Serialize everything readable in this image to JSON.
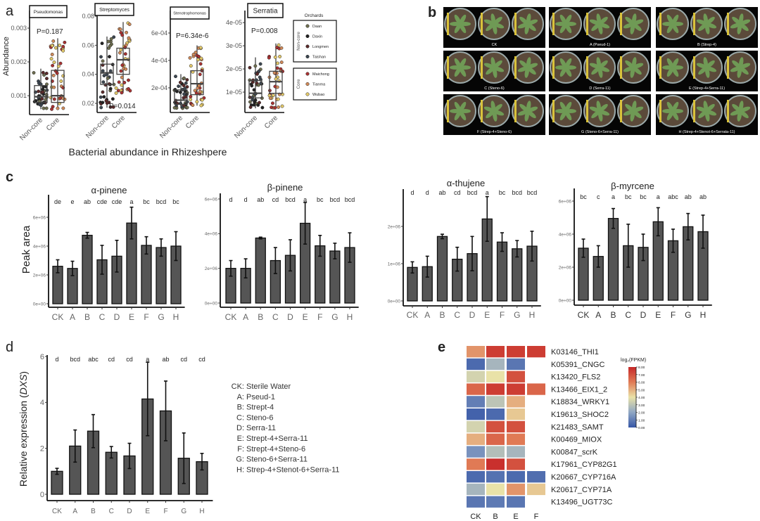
{
  "panel_labels": {
    "a": "a",
    "b": "b",
    "c": "c",
    "d": "d",
    "e": "e"
  },
  "panel_a": {
    "ylabel": "Abundance",
    "xlabel": "Bacterial abundance in Rhizeshpere",
    "legend": {
      "title": "Orchards",
      "groups": [
        {
          "name": "Non-core",
          "items": [
            {
              "name": "Daan",
              "color": "#6e6e50"
            },
            {
              "name": "Daxin",
              "color": "#222222"
            },
            {
              "name": "Longmen",
              "color": "#5a2a2a"
            },
            {
              "name": "Taishan",
              "color": "#3c4650"
            }
          ]
        },
        {
          "name": "Core",
          "items": [
            {
              "name": "Maichong",
              "color": "#a83232"
            },
            {
              "name": "Tianma",
              "color": "#d08a5a"
            },
            {
              "name": "Wubao",
              "color": "#e2c86a"
            }
          ]
        }
      ]
    }
  },
  "photos": {
    "labels": [
      "CK",
      "A (Pseud-1)",
      "B (Strep-4)",
      "C (Steno-6)",
      "D (Serra-11)",
      "E (Strep-4+Serra-11)",
      "F (Strep-4+Steno-6)",
      "G (Steno-6+Serra-11)",
      "H (Strep-4+Stenot-6+Serrata-11)"
    ]
  },
  "panel_c": {
    "ylabel": "Peak area"
  },
  "panel_d": {
    "legend": [
      {
        "key": "CK:",
        "value": "Sterile Water"
      },
      {
        "key": "A:",
        "value": "Pseud-1"
      },
      {
        "key": "B:",
        "value": "Strept-4"
      },
      {
        "key": "C:",
        "value": "Steno-6"
      },
      {
        "key": "D:",
        "value": "Serra-11"
      },
      {
        "key": "E:",
        "value": "Strept-4+Serra-11"
      },
      {
        "key": "F:",
        "value": "Strept-4+Steno-6"
      },
      {
        "key": "G:",
        "value": "Steno-6+Serra-11"
      },
      {
        "key": "H:",
        "value": "Strep-4+Stenot-6+Serra-11"
      }
    ]
  },
  "chart_data": [
    {
      "type": "box",
      "title": "Pseudomonas",
      "categories": [
        "Non-core",
        "Core"
      ],
      "p_label": "P=0.187",
      "ylim": [
        0.00044,
        0.00352
      ],
      "yticks": [
        0.001,
        0.002,
        0.003
      ],
      "ytick_labels": [
        "0.001",
        "0.002",
        "0.003"
      ],
      "stats": [
        {
          "whisker_low": 0.0006,
          "q1": 0.0008,
          "median": 0.00097,
          "q3": 0.0013,
          "whisker_high": 0.0018
        },
        {
          "whisker_low": 0.0006,
          "q1": 0.0008,
          "median": 0.001,
          "q3": 0.00175,
          "whisker_high": 0.0027
        }
      ]
    },
    {
      "type": "box",
      "title": "Streptomyces",
      "categories": [
        "Non-core",
        "Core"
      ],
      "p_label": "P=0.014",
      "ylim": [
        0.0137,
        0.0839
      ],
      "yticks": [
        0.02,
        0.04,
        0.06,
        0.08
      ],
      "ytick_labels": [
        "0.02",
        "0.04",
        "0.06",
        "0.08"
      ],
      "stats": [
        {
          "whisker_low": 0.017,
          "q1": 0.033,
          "median": 0.041,
          "q3": 0.047,
          "whisker_high": 0.066
        },
        {
          "whisker_low": 0.027,
          "q1": 0.04,
          "median": 0.05,
          "q3": 0.058,
          "whisker_high": 0.076
        }
      ]
    },
    {
      "type": "box",
      "title": "Stenotrophomonas",
      "categories": [
        "Non-core",
        "Core"
      ],
      "p_label": "P=6.34e-6",
      "ylim": [
        2e-05,
        0.000764
      ],
      "yticks": [
        0.0002,
        0.0004,
        0.0006
      ],
      "ytick_labels": [
        "2e-04",
        "4e-04",
        "6e-04"
      ],
      "stats": [
        {
          "whisker_low": 5e-05,
          "q1": 8e-05,
          "median": 0.00011,
          "q3": 0.000185,
          "whisker_high": 0.0003
        },
        {
          "whisker_low": 7e-05,
          "q1": 0.00015,
          "median": 0.00023,
          "q3": 0.000325,
          "whisker_high": 0.00051
        }
      ]
    },
    {
      "type": "box",
      "title": "Serratia",
      "categories": [
        "Non-core",
        "Core"
      ],
      "p_label": "P=0.008",
      "ylim": [
        1.2e-06,
        4.52e-05
      ],
      "yticks": [
        1e-05,
        2e-05,
        3e-05,
        4e-05
      ],
      "ytick_labels": [
        "1e-05",
        "2e-05",
        "3e-05",
        "4e-05"
      ],
      "stats": [
        {
          "whisker_low": 3e-06,
          "q1": 7.5e-06,
          "median": 9.5e-06,
          "q3": 1.5e-05,
          "whisker_high": 2.5e-05
        },
        {
          "whisker_low": 3e-06,
          "q1": 9.5e-06,
          "median": 1.45e-05,
          "q3": 1.9e-05,
          "whisker_high": 3.1e-05
        }
      ]
    },
    {
      "type": "bar",
      "title": "α-pinene",
      "categories": [
        "CK",
        "A",
        "B",
        "C",
        "D",
        "E",
        "F",
        "G",
        "H"
      ],
      "values": [
        2600000,
        2450000,
        4750000,
        3050000,
        3300000,
        5600000,
        4050000,
        3900000,
        4000000
      ],
      "errors": [
        450000,
        500000,
        200000,
        1000000,
        1100000,
        1100000,
        600000,
        600000,
        1000000
      ],
      "letters": [
        "de",
        "e",
        "ab",
        "cde",
        "cde",
        "a",
        "bc",
        "bcd",
        "bc"
      ],
      "yticks": [
        0,
        2000000,
        4000000,
        6000000
      ],
      "ytick_labels": [
        "0e+00",
        "2e+06",
        "4e+06",
        "6e+06"
      ]
    },
    {
      "type": "bar",
      "title": "β-pinene",
      "categories": [
        "CK",
        "A",
        "B",
        "C",
        "D",
        "E",
        "F",
        "G",
        "H"
      ],
      "values": [
        2000000,
        2000000,
        3750000,
        2450000,
        2750000,
        4600000,
        3300000,
        3000000,
        3200000
      ],
      "errors": [
        450000,
        550000,
        50000,
        750000,
        900000,
        1200000,
        600000,
        450000,
        850000
      ],
      "letters": [
        "d",
        "d",
        "ab",
        "cd",
        "bcd",
        "a",
        "bc",
        "bcd",
        "bcd"
      ],
      "yticks": [
        0,
        2000000,
        4000000,
        6000000
      ],
      "ytick_labels": [
        "0e+00",
        "2e+06",
        "4e+06",
        "6e+06"
      ]
    },
    {
      "type": "bar",
      "title": "α-thujene",
      "categories": [
        "CK",
        "A",
        "B",
        "C",
        "D",
        "E",
        "F",
        "G",
        "H"
      ],
      "values": [
        900000,
        920000,
        1730000,
        1120000,
        1270000,
        2200000,
        1580000,
        1400000,
        1470000
      ],
      "errors": [
        150000,
        280000,
        60000,
        320000,
        460000,
        600000,
        250000,
        220000,
        400000
      ],
      "letters": [
        "d",
        "d",
        "ab",
        "cd",
        "bcd",
        "a",
        "bc",
        "bcd",
        "bcd"
      ],
      "yticks": [
        0,
        1000000,
        2000000
      ],
      "ytick_labels": [
        "0e+00",
        "1e+06",
        "2e+06"
      ]
    },
    {
      "type": "bar",
      "title": "β-myrcene",
      "categories": [
        "CK",
        "A",
        "B",
        "C",
        "D",
        "E",
        "F",
        "G",
        "H"
      ],
      "values": [
        3150000,
        2650000,
        4950000,
        3300000,
        3200000,
        4750000,
        3600000,
        4450000,
        4150000
      ],
      "errors": [
        550000,
        650000,
        600000,
        1300000,
        800000,
        850000,
        700000,
        800000,
        1000000
      ],
      "letters": [
        "bc",
        "c",
        "a",
        "bc",
        "bc",
        "a",
        "abc",
        "ab",
        "ab"
      ],
      "yticks": [
        0,
        2000000,
        4000000,
        6000000
      ],
      "ytick_labels": [
        "0e+00",
        "2e+06",
        "4e+06",
        "6e+06"
      ]
    },
    {
      "type": "bar",
      "title": "",
      "ylabel": "Relative expression (DXS)",
      "ylabel_main": "Relative expression (",
      "ylabel_gene": "DXS",
      "ylabel_end": ")",
      "categories": [
        "CK",
        "A",
        "B",
        "C",
        "D",
        "E",
        "F",
        "G",
        "H"
      ],
      "values": [
        1.0,
        2.1,
        2.75,
        1.83,
        1.67,
        4.15,
        3.63,
        1.57,
        1.42
      ],
      "errors": [
        0.13,
        0.7,
        0.72,
        0.25,
        0.55,
        1.6,
        1.3,
        1.1,
        0.36
      ],
      "letters": [
        "d",
        "bcd",
        "abc",
        "cd",
        "cd",
        "a",
        "ab",
        "cd",
        "cd"
      ],
      "yticks": [
        0,
        2,
        4,
        6
      ],
      "ytick_labels": [
        "0",
        "2",
        "4",
        "6"
      ]
    },
    {
      "type": "heatmap",
      "legend_title": "log₂(FPKM)",
      "columns": [
        "CK",
        "B",
        "E",
        "F"
      ],
      "rows": [
        "K03146_THI1",
        "K05391_CNGC",
        "K13420_FLS2",
        "K13466_EIX1_2",
        "K18834_WRKY1",
        "K19613_SHOC2",
        "K21483_SAMT",
        "K00469_MIOX",
        "K00847_scrK",
        "K17961_CYP82G1",
        "K20667_CYP716A",
        "K20617_CYP71A",
        "K13496_UGT73C"
      ],
      "values": [
        [
          5.5,
          7.5,
          7.5,
          7.5
        ],
        [
          0.5,
          2.5,
          0.8,
          null
        ],
        [
          3.5,
          4.0,
          7.0,
          null
        ],
        [
          6.5,
          7.5,
          7.5,
          6.5
        ],
        [
          1.0,
          3.0,
          5.0,
          null
        ],
        [
          0.3,
          0.5,
          4.5,
          null
        ],
        [
          3.5,
          7.0,
          7.0,
          null
        ],
        [
          5.0,
          6.5,
          6.0,
          null
        ],
        [
          1.5,
          2.8,
          2.5,
          null
        ],
        [
          6.0,
          7.8,
          7.0,
          null
        ],
        [
          0.5,
          0.7,
          0.5,
          0.6
        ],
        [
          2.5,
          4.0,
          5.5,
          4.5
        ],
        [
          0.8,
          0.9,
          0.8,
          null
        ]
      ],
      "scale_range": [
        0,
        8
      ],
      "scale_ticks": [
        "8.00",
        "7.00",
        "6.00",
        "5.00",
        "4.00",
        "3.00",
        "2.00",
        "1.00",
        "0.00"
      ],
      "scale_colors": [
        "#3656a6",
        "#8fa6c4",
        "#e9e2a8",
        "#e07a55",
        "#c62828"
      ]
    }
  ]
}
